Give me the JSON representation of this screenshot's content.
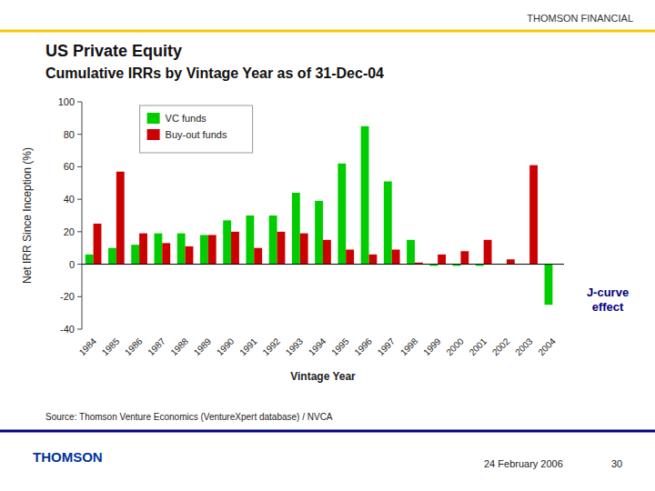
{
  "chart_data": {
    "type": "bar",
    "title": "US Private Equity",
    "subtitle": "Cumulative IRRs by Vintage Year as of 31-Dec-04",
    "x_label": "Vintage Year",
    "y_label": "Net IRR Since Inception (%)",
    "annotations": [
      "THOMSON FINANCIAL",
      "J-curve\neffect",
      "Source: Thomson Venture Economics (VentureXpert database) / NVCA",
      "24 February 2006",
      "30",
      "THOMSON"
    ],
    "categories": [
      "1984",
      "1985",
      "1986",
      "1987",
      "1988",
      "1989",
      "1990",
      "1991",
      "1992",
      "1993",
      "1994",
      "1995",
      "1996",
      "1997",
      "1998",
      "1999",
      "2000",
      "2001",
      "2002",
      "2003",
      "2004"
    ],
    "series": [
      {
        "name": "VC funds",
        "color": "#00cc00",
        "values": [
          6,
          10,
          12,
          19,
          19,
          18,
          27,
          30,
          30,
          44,
          39,
          62,
          85,
          51,
          15,
          -1,
          -1,
          -1,
          0,
          0,
          -25
        ]
      },
      {
        "name": "Buy-out funds",
        "color": "#cc0000",
        "values": [
          25,
          57,
          19,
          13,
          11,
          18,
          20,
          10,
          20,
          19,
          15,
          9,
          6,
          9,
          1,
          6,
          8,
          15,
          3,
          61,
          0
        ]
      }
    ],
    "ylim": [
      -40,
      100
    ],
    "yticks": [
      -40,
      -20,
      0,
      20,
      40,
      60,
      80,
      100
    ],
    "grid": false,
    "legend": "upper left"
  }
}
